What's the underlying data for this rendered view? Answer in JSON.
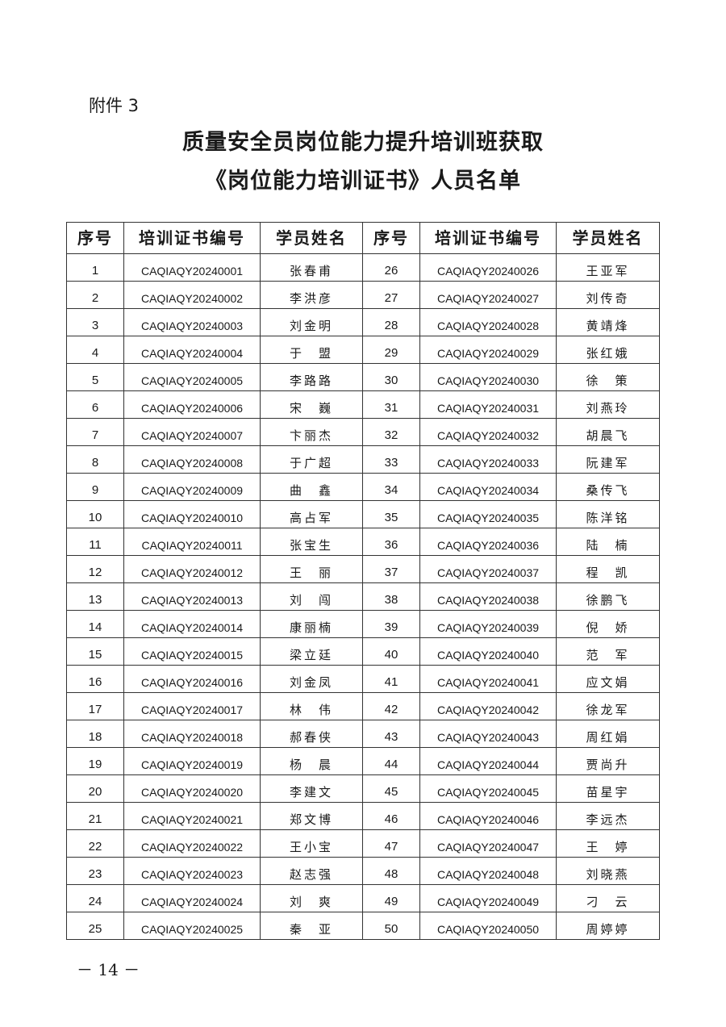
{
  "attachment_label": "附件 3",
  "title_line1": "质量安全员岗位能力提升培训班获取",
  "title_line2": "《岗位能力培训证书》人员名单",
  "table": {
    "headers": [
      "序号",
      "培训证书编号",
      "学员姓名",
      "序号",
      "培训证书编号",
      "学员姓名"
    ],
    "left": [
      [
        "1",
        "CAQIAQY20240001",
        "张春甫"
      ],
      [
        "2",
        "CAQIAQY20240002",
        "李洪彦"
      ],
      [
        "3",
        "CAQIAQY20240003",
        "刘金明"
      ],
      [
        "4",
        "CAQIAQY20240004",
        "于　盟"
      ],
      [
        "5",
        "CAQIAQY20240005",
        "李路路"
      ],
      [
        "6",
        "CAQIAQY20240006",
        "宋　巍"
      ],
      [
        "7",
        "CAQIAQY20240007",
        "卞丽杰"
      ],
      [
        "8",
        "CAQIAQY20240008",
        "于广超"
      ],
      [
        "9",
        "CAQIAQY20240009",
        "曲　鑫"
      ],
      [
        "10",
        "CAQIAQY20240010",
        "高占军"
      ],
      [
        "11",
        "CAQIAQY20240011",
        "张宝生"
      ],
      [
        "12",
        "CAQIAQY20240012",
        "王　丽"
      ],
      [
        "13",
        "CAQIAQY20240013",
        "刘　闯"
      ],
      [
        "14",
        "CAQIAQY20240014",
        "康丽楠"
      ],
      [
        "15",
        "CAQIAQY20240015",
        "梁立廷"
      ],
      [
        "16",
        "CAQIAQY20240016",
        "刘金凤"
      ],
      [
        "17",
        "CAQIAQY20240017",
        "林　伟"
      ],
      [
        "18",
        "CAQIAQY20240018",
        "郝春侠"
      ],
      [
        "19",
        "CAQIAQY20240019",
        "杨　晨"
      ],
      [
        "20",
        "CAQIAQY20240020",
        "李建文"
      ],
      [
        "21",
        "CAQIAQY20240021",
        "郑文博"
      ],
      [
        "22",
        "CAQIAQY20240022",
        "王小宝"
      ],
      [
        "23",
        "CAQIAQY20240023",
        "赵志强"
      ],
      [
        "24",
        "CAQIAQY20240024",
        "刘　爽"
      ],
      [
        "25",
        "CAQIAQY20240025",
        "秦　亚"
      ]
    ],
    "right": [
      [
        "26",
        "CAQIAQY20240026",
        "王亚军"
      ],
      [
        "27",
        "CAQIAQY20240027",
        "刘传奇"
      ],
      [
        "28",
        "CAQIAQY20240028",
        "黄靖烽"
      ],
      [
        "29",
        "CAQIAQY20240029",
        "张红娥"
      ],
      [
        "30",
        "CAQIAQY20240030",
        "徐　策"
      ],
      [
        "31",
        "CAQIAQY20240031",
        "刘燕玲"
      ],
      [
        "32",
        "CAQIAQY20240032",
        "胡晨飞"
      ],
      [
        "33",
        "CAQIAQY20240033",
        "阮建军"
      ],
      [
        "34",
        "CAQIAQY20240034",
        "桑传飞"
      ],
      [
        "35",
        "CAQIAQY20240035",
        "陈洋铭"
      ],
      [
        "36",
        "CAQIAQY20240036",
        "陆　楠"
      ],
      [
        "37",
        "CAQIAQY20240037",
        "程　凯"
      ],
      [
        "38",
        "CAQIAQY20240038",
        "徐鹏飞"
      ],
      [
        "39",
        "CAQIAQY20240039",
        "倪　娇"
      ],
      [
        "40",
        "CAQIAQY20240040",
        "范　军"
      ],
      [
        "41",
        "CAQIAQY20240041",
        "应文娟"
      ],
      [
        "42",
        "CAQIAQY20240042",
        "徐龙军"
      ],
      [
        "43",
        "CAQIAQY20240043",
        "周红娟"
      ],
      [
        "44",
        "CAQIAQY20240044",
        "贾尚升"
      ],
      [
        "45",
        "CAQIAQY20240045",
        "苗星宇"
      ],
      [
        "46",
        "CAQIAQY20240046",
        "李远杰"
      ],
      [
        "47",
        "CAQIAQY20240047",
        "王　婷"
      ],
      [
        "48",
        "CAQIAQY20240048",
        "刘晓燕"
      ],
      [
        "49",
        "CAQIAQY20240049",
        "刁　云"
      ],
      [
        "50",
        "CAQIAQY20240050",
        "周婷婷"
      ]
    ]
  },
  "page_number": "－ 14 －"
}
